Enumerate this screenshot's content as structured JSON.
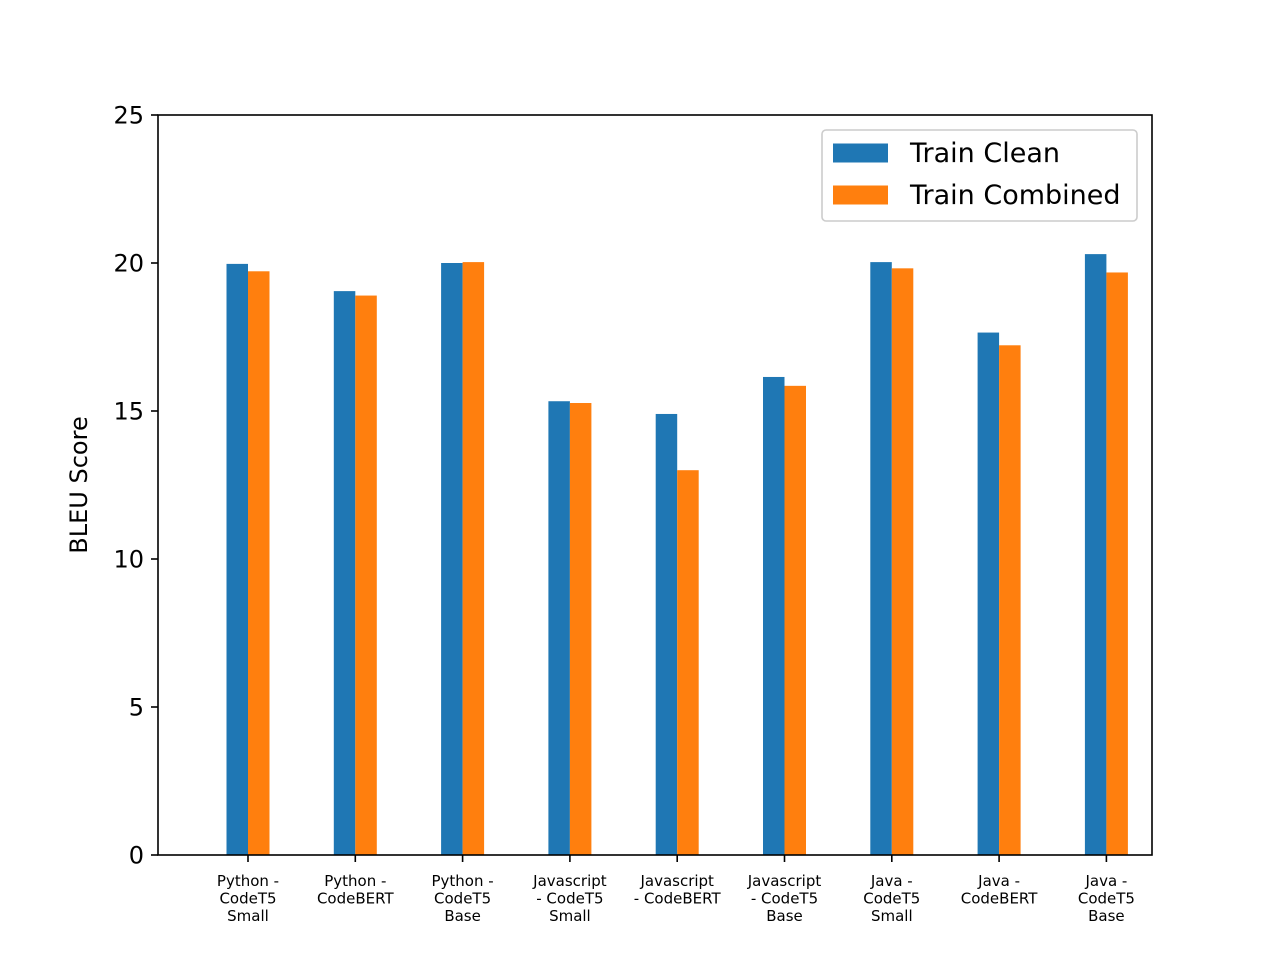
{
  "chart_data": {
    "type": "bar",
    "title": "",
    "xlabel": "",
    "ylabel": "BLEU Score",
    "ylim": [
      0,
      25
    ],
    "yticks": [
      0,
      5,
      10,
      15,
      20,
      25
    ],
    "grid": false,
    "legend_position": "top-right",
    "categories": [
      [
        "Python -",
        "CodeT5",
        "Small"
      ],
      [
        "Python -",
        "CodeBERT"
      ],
      [
        "Python -",
        "CodeT5",
        "Base"
      ],
      [
        "Javascript",
        "- CodeT5",
        "Small"
      ],
      [
        "Javascript",
        "- CodeBERT"
      ],
      [
        "Javascript",
        "- CodeT5",
        "Base"
      ],
      [
        "Java -",
        "CodeT5",
        "Small"
      ],
      [
        "Java -",
        "CodeBERT"
      ],
      [
        "Java -",
        "CodeT5",
        "Base"
      ]
    ],
    "series": [
      {
        "name": "Train Clean",
        "color": "#1f77b4",
        "values": [
          19.97,
          19.05,
          20.0,
          15.33,
          14.9,
          16.15,
          20.03,
          17.65,
          20.3
        ]
      },
      {
        "name": "Train Combined",
        "color": "#ff7f0e",
        "values": [
          19.72,
          18.9,
          20.03,
          15.27,
          13.0,
          15.85,
          19.82,
          17.22,
          19.68
        ]
      }
    ]
  }
}
